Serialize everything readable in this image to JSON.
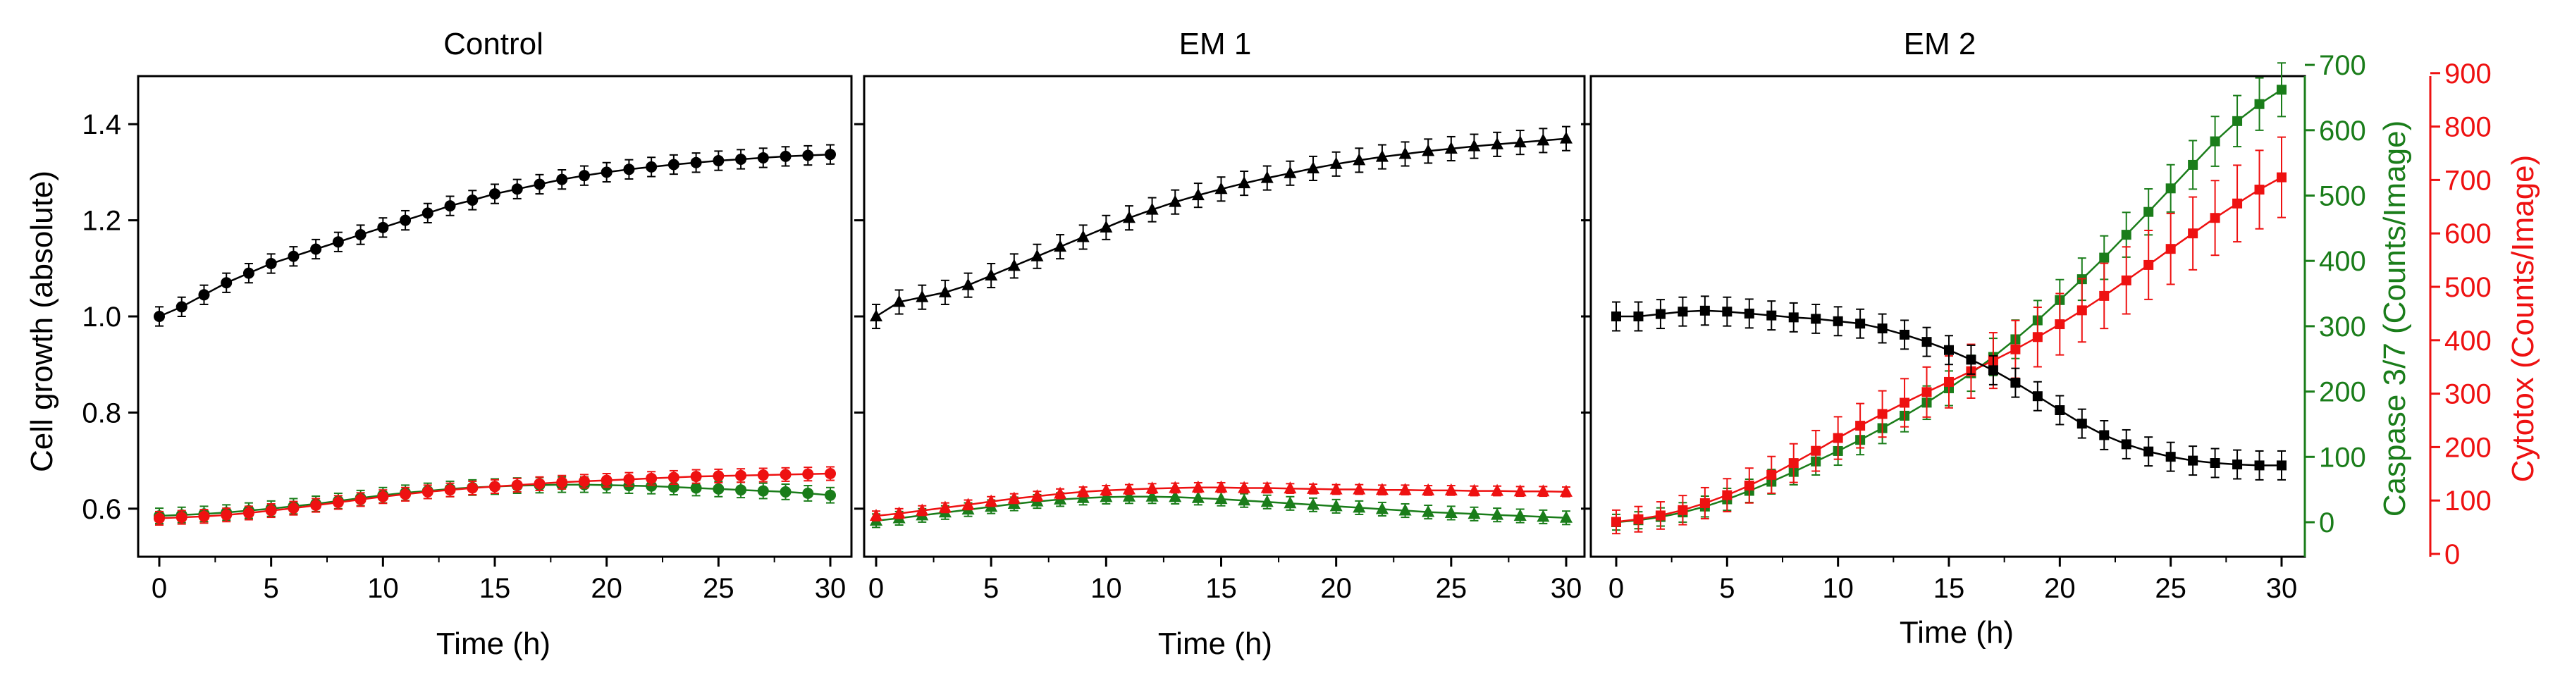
{
  "figure": {
    "y_left_label": "Cell growth (absolute)",
    "y_green_label": "Caspase 3/7 (Counts/Image)",
    "y_red_label": "Cytotox (Counts/Image)",
    "x_label": "Time (h)"
  },
  "colors": {
    "black": "#000000",
    "green": "#1a7d1a",
    "red": "#ee1111"
  },
  "chart_data": [
    {
      "type": "line",
      "title": "Control",
      "xlabel": "Time (h)",
      "ylabel": "Cell growth (absolute)",
      "xlim": [
        0,
        30
      ],
      "ylim": [
        0.5,
        1.5
      ],
      "x_ticks": [
        "0",
        "5",
        "10",
        "15",
        "20",
        "25",
        "30"
      ],
      "y_ticks": [
        "0.6",
        "0.8",
        "1.0",
        "1.2",
        "1.4"
      ],
      "marker": "circle",
      "series": [
        {
          "name": "Cell growth",
          "color": "black",
          "axis": "left",
          "x_step": 1,
          "values": [
            1.0,
            1.02,
            1.045,
            1.07,
            1.09,
            1.11,
            1.125,
            1.14,
            1.155,
            1.17,
            1.185,
            1.2,
            1.215,
            1.23,
            1.242,
            1.255,
            1.265,
            1.275,
            1.285,
            1.293,
            1.3,
            1.306,
            1.311,
            1.316,
            1.32,
            1.324,
            1.327,
            1.33,
            1.333,
            1.335,
            1.337
          ],
          "error": 0.02
        },
        {
          "name": "Caspase 3/7",
          "color": "green",
          "axis": "left",
          "x_step": 1,
          "values": [
            0.585,
            0.587,
            0.589,
            0.592,
            0.596,
            0.6,
            0.605,
            0.61,
            0.616,
            0.622,
            0.628,
            0.633,
            0.637,
            0.641,
            0.644,
            0.646,
            0.648,
            0.649,
            0.65,
            0.65,
            0.649,
            0.648,
            0.647,
            0.645,
            0.643,
            0.641,
            0.639,
            0.637,
            0.635,
            0.632,
            0.628
          ],
          "error": 0.016
        },
        {
          "name": "Cytotox",
          "color": "red",
          "axis": "left",
          "x_step": 1,
          "values": [
            0.58,
            0.582,
            0.584,
            0.587,
            0.591,
            0.596,
            0.601,
            0.607,
            0.613,
            0.619,
            0.625,
            0.63,
            0.635,
            0.639,
            0.643,
            0.646,
            0.649,
            0.652,
            0.655,
            0.657,
            0.659,
            0.661,
            0.663,
            0.665,
            0.667,
            0.668,
            0.669,
            0.67,
            0.671,
            0.672,
            0.673
          ],
          "error": 0.014
        }
      ]
    },
    {
      "type": "line",
      "title": "EM 1",
      "xlabel": "Time (h)",
      "xlim": [
        0,
        30
      ],
      "ylim": [
        0.5,
        1.5
      ],
      "x_ticks": [
        "0",
        "5",
        "10",
        "15",
        "20",
        "25",
        "30"
      ],
      "marker": "triangle",
      "series": [
        {
          "name": "Cell growth",
          "color": "black",
          "axis": "left",
          "x_step": 1,
          "values": [
            1.0,
            1.03,
            1.04,
            1.05,
            1.065,
            1.085,
            1.105,
            1.125,
            1.145,
            1.165,
            1.185,
            1.205,
            1.222,
            1.238,
            1.252,
            1.265,
            1.277,
            1.288,
            1.298,
            1.308,
            1.317,
            1.325,
            1.332,
            1.338,
            1.344,
            1.349,
            1.354,
            1.358,
            1.362,
            1.366,
            1.37
          ],
          "error": 0.025
        },
        {
          "name": "Caspase 3/7",
          "color": "green",
          "axis": "left",
          "x_step": 1,
          "values": [
            0.575,
            0.58,
            0.586,
            0.592,
            0.598,
            0.604,
            0.61,
            0.615,
            0.619,
            0.622,
            0.624,
            0.625,
            0.625,
            0.624,
            0.622,
            0.62,
            0.617,
            0.614,
            0.611,
            0.608,
            0.605,
            0.602,
            0.599,
            0.596,
            0.593,
            0.591,
            0.589,
            0.587,
            0.585,
            0.583,
            0.581
          ],
          "error": 0.014
        },
        {
          "name": "Cytotox",
          "color": "red",
          "axis": "left",
          "x_step": 1,
          "values": [
            0.585,
            0.59,
            0.596,
            0.602,
            0.608,
            0.615,
            0.621,
            0.626,
            0.631,
            0.635,
            0.638,
            0.64,
            0.642,
            0.643,
            0.644,
            0.644,
            0.643,
            0.643,
            0.642,
            0.641,
            0.64,
            0.64,
            0.639,
            0.639,
            0.638,
            0.638,
            0.637,
            0.637,
            0.636,
            0.636,
            0.635
          ],
          "error": 0.01
        }
      ]
    },
    {
      "type": "line",
      "title": "EM 2",
      "xlabel": "Time (h)",
      "xlim": [
        0,
        30
      ],
      "ylim": [
        0.5,
        1.5
      ],
      "x_ticks": [
        "0",
        "5",
        "10",
        "15",
        "20",
        "25",
        "30"
      ],
      "y_green_lim": [
        -60,
        700
      ],
      "y_green_ticks": [
        "0",
        "100",
        "200",
        "300",
        "400",
        "500",
        "600",
        "700"
      ],
      "y_red_lim": [
        0,
        900
      ],
      "y_red_ticks": [
        "0",
        "100",
        "200",
        "300",
        "400",
        "500",
        "600",
        "700",
        "800",
        "900"
      ],
      "marker": "square",
      "series": [
        {
          "name": "Cell growth",
          "color": "black",
          "axis": "left",
          "x_step": 1,
          "values": [
            1.0,
            1.0,
            1.005,
            1.01,
            1.012,
            1.01,
            1.006,
            1.002,
            0.998,
            0.995,
            0.99,
            0.985,
            0.975,
            0.962,
            0.947,
            0.93,
            0.91,
            0.888,
            0.862,
            0.834,
            0.805,
            0.777,
            0.753,
            0.734,
            0.719,
            0.708,
            0.7,
            0.695,
            0.692,
            0.69,
            0.69
          ],
          "error": 0.03
        },
        {
          "name": "Caspase 3/7",
          "color": "green",
          "axis": "green",
          "x_step": 1,
          "values": [
            0,
            3,
            8,
            15,
            24,
            35,
            48,
            62,
            77,
            93,
            109,
            126,
            144,
            163,
            183,
            205,
            228,
            253,
            280,
            309,
            340,
            372,
            405,
            440,
            475,
            511,
            547,
            583,
            614,
            640,
            662
          ],
          "error": 30
        },
        {
          "name": "Cytotox",
          "color": "red",
          "axis": "red",
          "x_step": 1,
          "values": [
            60,
            65,
            72,
            82,
            95,
            110,
            128,
            148,
            170,
            193,
            217,
            240,
            262,
            283,
            303,
            322,
            342,
            362,
            383,
            406,
            430,
            456,
            483,
            512,
            541,
            571,
            600,
            629,
            656,
            682,
            705
          ],
          "error": 55
        }
      ]
    }
  ]
}
